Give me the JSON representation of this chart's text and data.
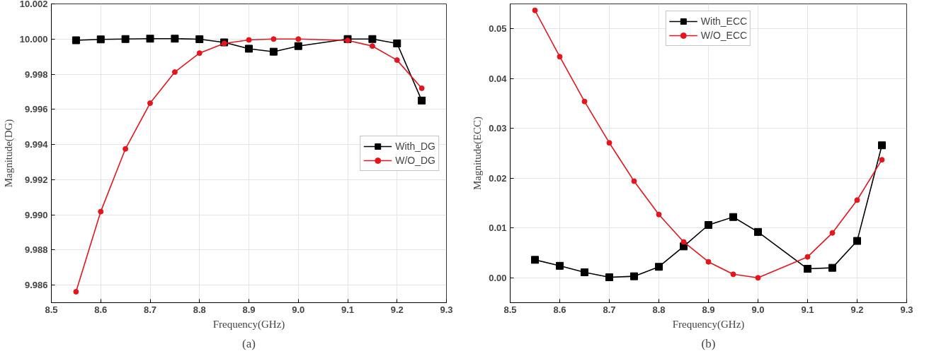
{
  "chart_data": [
    {
      "type": "line",
      "xlabel": "Frequency(GHz)",
      "ylabel": "Magnitude(DG)",
      "annotations": [
        "(a)"
      ],
      "xlim": [
        8.5,
        9.3
      ],
      "xticks": [
        8.5,
        8.6,
        8.7,
        8.8,
        8.9,
        {
          "value": 9.0,
          "label": "9.0"
        },
        9.1,
        9.2,
        9.3
      ],
      "ylim": [
        9.985,
        10.002
      ],
      "yticks": [
        9.986,
        9.988,
        {
          "value": 9.99,
          "label": "9.990"
        },
        9.992,
        9.994,
        9.996,
        9.998,
        {
          "value": 10.0,
          "label": "10.000"
        },
        10.002
      ],
      "x": [
        8.55,
        8.6,
        8.65,
        8.7,
        8.75,
        8.8,
        8.85,
        8.9,
        8.95,
        9.0,
        9.1,
        9.15,
        9.2,
        9.25
      ],
      "grid": true,
      "legend": "right",
      "line_style": "solid",
      "series": [
        {
          "name": "With_DG",
          "color": "#000000",
          "marker": "square",
          "values": [
            9.99993,
            9.99998,
            10.0,
            10.00002,
            10.00002,
            9.99999,
            9.99981,
            9.99945,
            9.99928,
            9.9996,
            10.0,
            10.0,
            9.99975,
            9.9965
          ]
        },
        {
          "name": "W/O_DG",
          "color": "#e8141c",
          "marker": "circle",
          "values": [
            9.98562,
            9.99018,
            9.99375,
            9.99635,
            9.99812,
            9.9992,
            9.99975,
            9.99995,
            10.0,
            10.0,
            9.99992,
            9.9996,
            9.9988,
            9.9972
          ]
        }
      ]
    },
    {
      "type": "line",
      "xlabel": "Frequency(GHz)",
      "ylabel": "Magnitude(ECC)",
      "annotations": [
        "(b)"
      ],
      "xlim": [
        8.5,
        9.3
      ],
      "xticks": [
        8.5,
        8.6,
        8.7,
        8.8,
        8.9,
        {
          "value": 9.0,
          "label": "9.0"
        },
        9.1,
        9.2,
        9.3
      ],
      "ylim": [
        -0.005,
        0.055
      ],
      "yticks": [
        {
          "value": 0.0,
          "label": "0.00"
        },
        {
          "value": 0.01,
          "label": "0.01"
        },
        {
          "value": 0.02,
          "label": "0.02"
        },
        {
          "value": 0.03,
          "label": "0.03"
        },
        {
          "value": 0.04,
          "label": "0.04"
        },
        {
          "value": 0.05,
          "label": "0.05"
        }
      ],
      "x": [
        8.55,
        8.6,
        8.65,
        8.7,
        8.75,
        8.8,
        8.85,
        8.9,
        8.95,
        9.0,
        9.1,
        9.15,
        9.2,
        9.25
      ],
      "grid": true,
      "legend": "top",
      "line_style": "solid",
      "series": [
        {
          "name": "With_ECC",
          "color": "#000000",
          "marker": "square",
          "values": [
            0.0036,
            0.0024,
            0.0011,
            0.0001,
            0.0003,
            0.0022,
            0.0063,
            0.0106,
            0.0122,
            0.0092,
            0.0018,
            0.002,
            0.0074,
            0.0266
          ]
        },
        {
          "name": "W/O_ECC",
          "color": "#e8141c",
          "marker": "circle",
          "values": [
            0.0537,
            0.0444,
            0.0354,
            0.0271,
            0.0194,
            0.0127,
            0.0072,
            0.0032,
            0.0007,
            0.0,
            0.0042,
            0.009,
            0.0156,
            0.0237
          ]
        }
      ]
    }
  ]
}
